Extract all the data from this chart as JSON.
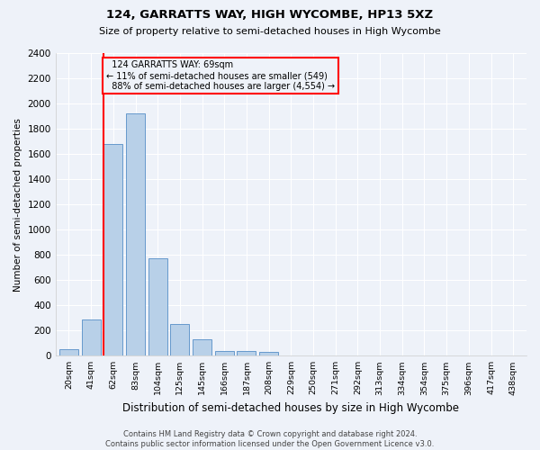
{
  "title": "124, GARRATTS WAY, HIGH WYCOMBE, HP13 5XZ",
  "subtitle": "Size of property relative to semi-detached houses in High Wycombe",
  "xlabel": "Distribution of semi-detached houses by size in High Wycombe",
  "ylabel": "Number of semi-detached properties",
  "footer_line1": "Contains HM Land Registry data © Crown copyright and database right 2024.",
  "footer_line2": "Contains public sector information licensed under the Open Government Licence v3.0.",
  "bar_labels": [
    "20sqm",
    "41sqm",
    "62sqm",
    "83sqm",
    "104sqm",
    "125sqm",
    "145sqm",
    "166sqm",
    "187sqm",
    "208sqm",
    "229sqm",
    "250sqm",
    "271sqm",
    "292sqm",
    "313sqm",
    "334sqm",
    "354sqm",
    "375sqm",
    "396sqm",
    "417sqm",
    "438sqm"
  ],
  "bar_heights": [
    55,
    285,
    1680,
    1920,
    775,
    255,
    130,
    40,
    35,
    30,
    0,
    0,
    0,
    0,
    0,
    0,
    0,
    0,
    0,
    0,
    0
  ],
  "bar_color": "#b8d0e8",
  "bar_edge_color": "#6699cc",
  "ylim": [
    0,
    2400
  ],
  "yticks": [
    0,
    200,
    400,
    600,
    800,
    1000,
    1200,
    1400,
    1600,
    1800,
    2000,
    2200,
    2400
  ],
  "property_label": "124 GARRATTS WAY: 69sqm",
  "smaller_pct": 11,
  "smaller_count": 549,
  "larger_pct": 88,
  "larger_count": 4554,
  "vline_bar_index": 2,
  "bg_color": "#eef2f9",
  "grid_color": "#ffffff",
  "n_bars": 21
}
